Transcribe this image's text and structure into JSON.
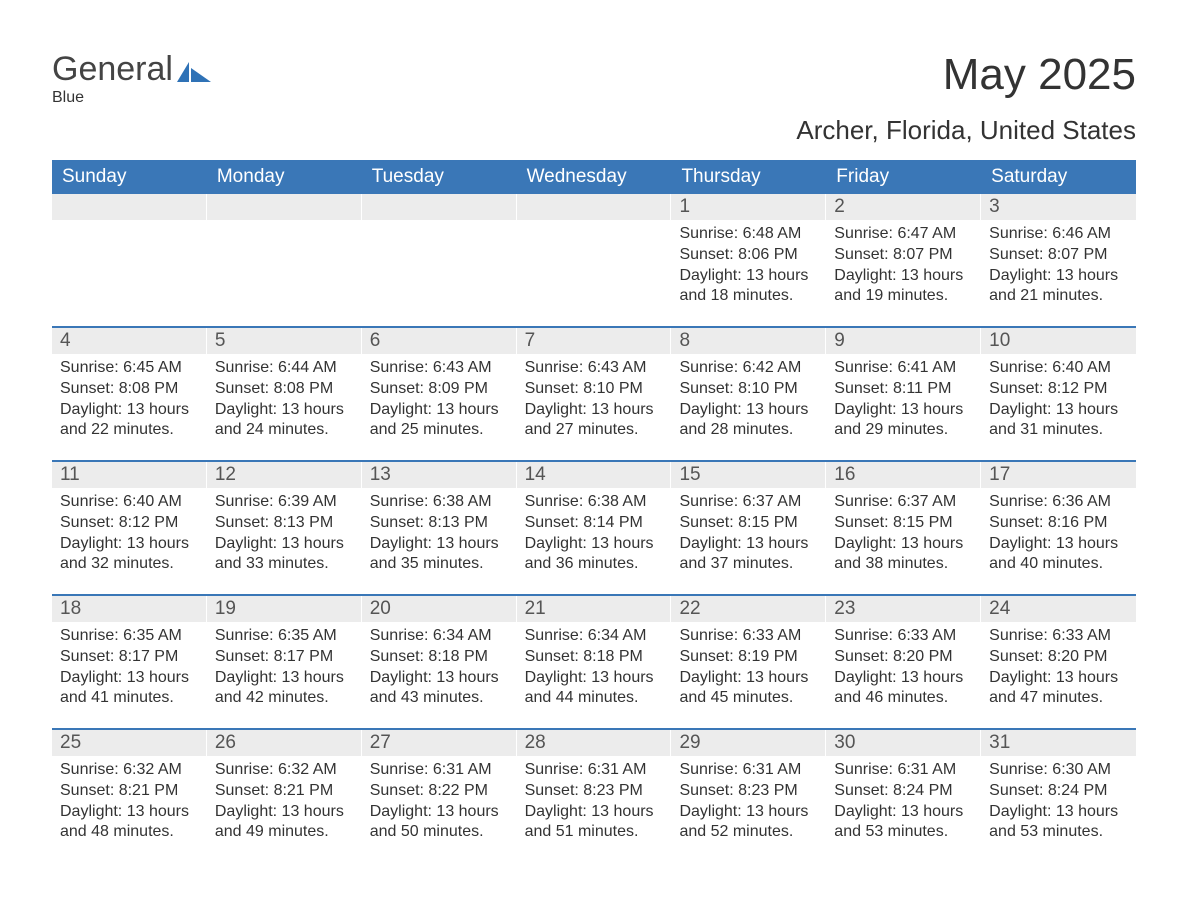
{
  "logo": {
    "text1": "General",
    "text2": "Blue",
    "accent_color": "#2f72b6"
  },
  "title": "May 2025",
  "location": "Archer, Florida, United States",
  "colors": {
    "header_bg": "#3a77b7",
    "header_text": "#ffffff",
    "daynum_bg": "#ececec",
    "body_bg": "#ffffff",
    "text": "#333333",
    "rule": "#3a77b7"
  },
  "day_names": [
    "Sunday",
    "Monday",
    "Tuesday",
    "Wednesday",
    "Thursday",
    "Friday",
    "Saturday"
  ],
  "weeks": [
    [
      {
        "n": "",
        "sunrise": "",
        "sunset": "",
        "daylight": ""
      },
      {
        "n": "",
        "sunrise": "",
        "sunset": "",
        "daylight": ""
      },
      {
        "n": "",
        "sunrise": "",
        "sunset": "",
        "daylight": ""
      },
      {
        "n": "",
        "sunrise": "",
        "sunset": "",
        "daylight": ""
      },
      {
        "n": "1",
        "sunrise": "6:48 AM",
        "sunset": "8:06 PM",
        "daylight": "13 hours and 18 minutes."
      },
      {
        "n": "2",
        "sunrise": "6:47 AM",
        "sunset": "8:07 PM",
        "daylight": "13 hours and 19 minutes."
      },
      {
        "n": "3",
        "sunrise": "6:46 AM",
        "sunset": "8:07 PM",
        "daylight": "13 hours and 21 minutes."
      }
    ],
    [
      {
        "n": "4",
        "sunrise": "6:45 AM",
        "sunset": "8:08 PM",
        "daylight": "13 hours and 22 minutes."
      },
      {
        "n": "5",
        "sunrise": "6:44 AM",
        "sunset": "8:08 PM",
        "daylight": "13 hours and 24 minutes."
      },
      {
        "n": "6",
        "sunrise": "6:43 AM",
        "sunset": "8:09 PM",
        "daylight": "13 hours and 25 minutes."
      },
      {
        "n": "7",
        "sunrise": "6:43 AM",
        "sunset": "8:10 PM",
        "daylight": "13 hours and 27 minutes."
      },
      {
        "n": "8",
        "sunrise": "6:42 AM",
        "sunset": "8:10 PM",
        "daylight": "13 hours and 28 minutes."
      },
      {
        "n": "9",
        "sunrise": "6:41 AM",
        "sunset": "8:11 PM",
        "daylight": "13 hours and 29 minutes."
      },
      {
        "n": "10",
        "sunrise": "6:40 AM",
        "sunset": "8:12 PM",
        "daylight": "13 hours and 31 minutes."
      }
    ],
    [
      {
        "n": "11",
        "sunrise": "6:40 AM",
        "sunset": "8:12 PM",
        "daylight": "13 hours and 32 minutes."
      },
      {
        "n": "12",
        "sunrise": "6:39 AM",
        "sunset": "8:13 PM",
        "daylight": "13 hours and 33 minutes."
      },
      {
        "n": "13",
        "sunrise": "6:38 AM",
        "sunset": "8:13 PM",
        "daylight": "13 hours and 35 minutes."
      },
      {
        "n": "14",
        "sunrise": "6:38 AM",
        "sunset": "8:14 PM",
        "daylight": "13 hours and 36 minutes."
      },
      {
        "n": "15",
        "sunrise": "6:37 AM",
        "sunset": "8:15 PM",
        "daylight": "13 hours and 37 minutes."
      },
      {
        "n": "16",
        "sunrise": "6:37 AM",
        "sunset": "8:15 PM",
        "daylight": "13 hours and 38 minutes."
      },
      {
        "n": "17",
        "sunrise": "6:36 AM",
        "sunset": "8:16 PM",
        "daylight": "13 hours and 40 minutes."
      }
    ],
    [
      {
        "n": "18",
        "sunrise": "6:35 AM",
        "sunset": "8:17 PM",
        "daylight": "13 hours and 41 minutes."
      },
      {
        "n": "19",
        "sunrise": "6:35 AM",
        "sunset": "8:17 PM",
        "daylight": "13 hours and 42 minutes."
      },
      {
        "n": "20",
        "sunrise": "6:34 AM",
        "sunset": "8:18 PM",
        "daylight": "13 hours and 43 minutes."
      },
      {
        "n": "21",
        "sunrise": "6:34 AM",
        "sunset": "8:18 PM",
        "daylight": "13 hours and 44 minutes."
      },
      {
        "n": "22",
        "sunrise": "6:33 AM",
        "sunset": "8:19 PM",
        "daylight": "13 hours and 45 minutes."
      },
      {
        "n": "23",
        "sunrise": "6:33 AM",
        "sunset": "8:20 PM",
        "daylight": "13 hours and 46 minutes."
      },
      {
        "n": "24",
        "sunrise": "6:33 AM",
        "sunset": "8:20 PM",
        "daylight": "13 hours and 47 minutes."
      }
    ],
    [
      {
        "n": "25",
        "sunrise": "6:32 AM",
        "sunset": "8:21 PM",
        "daylight": "13 hours and 48 minutes."
      },
      {
        "n": "26",
        "sunrise": "6:32 AM",
        "sunset": "8:21 PM",
        "daylight": "13 hours and 49 minutes."
      },
      {
        "n": "27",
        "sunrise": "6:31 AM",
        "sunset": "8:22 PM",
        "daylight": "13 hours and 50 minutes."
      },
      {
        "n": "28",
        "sunrise": "6:31 AM",
        "sunset": "8:23 PM",
        "daylight": "13 hours and 51 minutes."
      },
      {
        "n": "29",
        "sunrise": "6:31 AM",
        "sunset": "8:23 PM",
        "daylight": "13 hours and 52 minutes."
      },
      {
        "n": "30",
        "sunrise": "6:31 AM",
        "sunset": "8:24 PM",
        "daylight": "13 hours and 53 minutes."
      },
      {
        "n": "31",
        "sunrise": "6:30 AM",
        "sunset": "8:24 PM",
        "daylight": "13 hours and 53 minutes."
      }
    ]
  ],
  "labels": {
    "sunrise": "Sunrise: ",
    "sunset": "Sunset: ",
    "daylight": "Daylight: "
  }
}
